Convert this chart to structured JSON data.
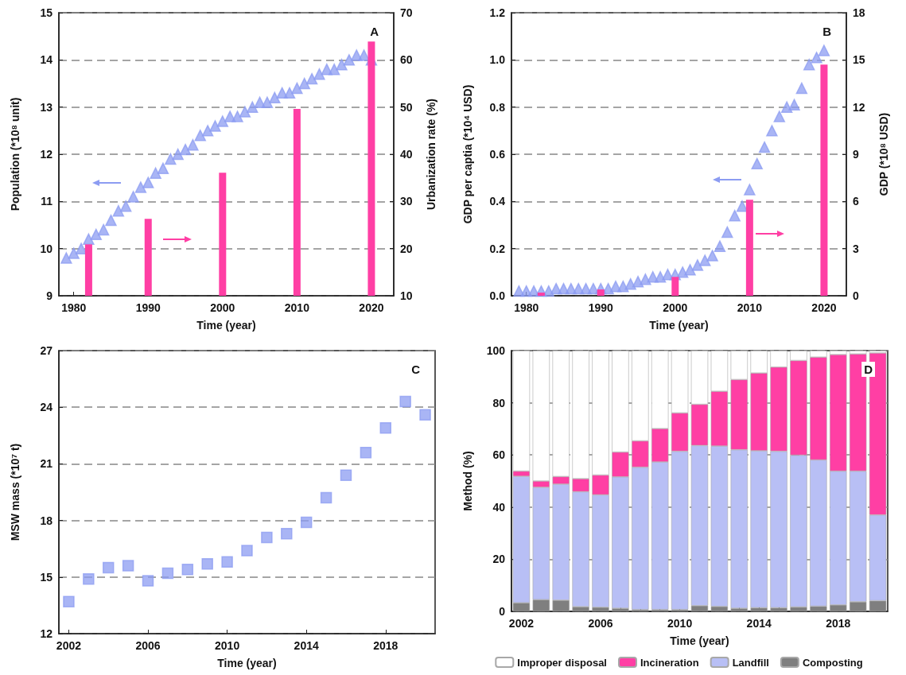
{
  "chart_data": [
    {
      "type": "scatter",
      "annotations": [
        "A"
      ],
      "xlabel": "Time (year)",
      "ylabel": "Population (*10⁸ unit)",
      "y2label": "Urbanization rate (%)",
      "xlim": [
        1978,
        2023
      ],
      "xticks": [
        1980,
        1990,
        2000,
        2010,
        2020
      ],
      "ylim": [
        9,
        15
      ],
      "yticks": [
        9,
        10,
        11,
        12,
        13,
        14,
        15
      ],
      "y2lim": [
        10,
        70
      ],
      "y2ticks": [
        10,
        20,
        30,
        40,
        50,
        60,
        70
      ],
      "grid": "y",
      "marker": "triangle",
      "series": [
        {
          "color": "#8c9cf2",
          "x": [
            1979,
            1980,
            1981,
            1982,
            1983,
            1984,
            1985,
            1986,
            1987,
            1988,
            1989,
            1990,
            1991,
            1992,
            1993,
            1994,
            1995,
            1996,
            1997,
            1998,
            1999,
            2000,
            2001,
            2002,
            2003,
            2004,
            2005,
            2006,
            2007,
            2008,
            2009,
            2010,
            2011,
            2012,
            2013,
            2014,
            2015,
            2016,
            2017,
            2018,
            2019,
            2020
          ],
          "values": [
            9.8,
            9.9,
            10.0,
            10.2,
            10.3,
            10.4,
            10.6,
            10.8,
            10.9,
            11.1,
            11.3,
            11.4,
            11.6,
            11.7,
            11.9,
            12.0,
            12.1,
            12.2,
            12.4,
            12.5,
            12.6,
            12.7,
            12.8,
            12.8,
            12.9,
            13.0,
            13.1,
            13.1,
            13.2,
            13.3,
            13.3,
            13.4,
            13.5,
            13.6,
            13.7,
            13.8,
            13.8,
            13.9,
            14.0,
            14.1,
            14.1,
            14.0
          ]
        },
        {
          "type": "bar",
          "axis": "y2",
          "color": "#ff3fa4",
          "x": [
            1982,
            1990,
            2000,
            2010,
            2020
          ],
          "values": [
            20.9,
            26.3,
            36.1,
            49.6,
            63.9
          ]
        }
      ]
    },
    {
      "type": "scatter",
      "annotations": [
        "B"
      ],
      "xlabel": "Time (year)",
      "ylabel": "GDP per captia (*10⁴ USD)",
      "y2label": "GDP (*10⁸ USD)",
      "xlim": [
        1978,
        2023
      ],
      "xticks": [
        1980,
        1990,
        2000,
        2010,
        2020
      ],
      "ylim": [
        0,
        1.2
      ],
      "yticks": [
        {
          "value": 0,
          "label": "0.0"
        },
        0.2,
        0.4,
        0.6,
        0.8,
        {
          "value": 1,
          "label": "1.0"
        },
        1.2
      ],
      "y2lim": [
        0,
        18
      ],
      "y2ticks": [
        0,
        3,
        6,
        9,
        12,
        15,
        18
      ],
      "grid": "y",
      "marker": "triangle",
      "series": [
        {
          "color": "#8c9cf2",
          "x": [
            1979,
            1980,
            1981,
            1982,
            1983,
            1984,
            1985,
            1986,
            1987,
            1988,
            1989,
            1990,
            1991,
            1992,
            1993,
            1994,
            1995,
            1996,
            1997,
            1998,
            1999,
            2000,
            2001,
            2002,
            2003,
            2004,
            2005,
            2006,
            2007,
            2008,
            2009,
            2010,
            2011,
            2012,
            2013,
            2014,
            2015,
            2016,
            2017,
            2018,
            2019,
            2020
          ],
          "values": [
            0.02,
            0.02,
            0.02,
            0.02,
            0.02,
            0.03,
            0.03,
            0.03,
            0.03,
            0.03,
            0.03,
            0.03,
            0.03,
            0.04,
            0.04,
            0.05,
            0.06,
            0.07,
            0.08,
            0.08,
            0.09,
            0.09,
            0.1,
            0.11,
            0.13,
            0.15,
            0.17,
            0.21,
            0.27,
            0.34,
            0.38,
            0.45,
            0.56,
            0.63,
            0.7,
            0.76,
            0.8,
            0.81,
            0.88,
            0.98,
            1.01,
            1.04
          ]
        },
        {
          "type": "bar",
          "axis": "y2",
          "color": "#ff3fa4",
          "x": [
            1982,
            1990,
            2000,
            2010,
            2020
          ],
          "values": [
            0.2,
            0.4,
            1.2,
            6.1,
            14.7
          ]
        }
      ]
    },
    {
      "type": "scatter",
      "annotations": [
        "C"
      ],
      "xlabel": "Time (year)",
      "ylabel": "MSW mass (*10⁷ t)",
      "xlim": [
        2001.5,
        2020.5
      ],
      "xticks": [
        2002,
        2006,
        2010,
        2014,
        2018
      ],
      "ylim": [
        12,
        27
      ],
      "yticks": [
        12,
        15,
        18,
        21,
        24,
        27
      ],
      "grid": "y",
      "marker": "square",
      "series": [
        {
          "color": "#8c9cf2",
          "x": [
            2002,
            2003,
            2004,
            2005,
            2006,
            2007,
            2008,
            2009,
            2010,
            2011,
            2012,
            2013,
            2014,
            2015,
            2016,
            2017,
            2018,
            2019,
            2020
          ],
          "values": [
            13.7,
            14.9,
            15.5,
            15.6,
            14.8,
            15.2,
            15.4,
            15.7,
            15.8,
            16.4,
            17.1,
            17.3,
            17.9,
            19.2,
            20.4,
            21.6,
            22.9,
            24.3,
            23.6
          ]
        }
      ]
    },
    {
      "type": "bar",
      "stacked": true,
      "annotations": [
        "D"
      ],
      "xlabel": "Time (year)",
      "ylabel": "Method (%)",
      "categories": [
        "2002",
        null,
        null,
        null,
        "2006",
        null,
        null,
        null,
        "2010",
        null,
        null,
        null,
        "2014",
        null,
        null,
        null,
        "2018",
        null,
        null
      ],
      "ylim": [
        0,
        100
      ],
      "yticks": [
        0,
        20,
        40,
        60,
        80,
        100
      ],
      "grid": "y",
      "legend": "bottom",
      "series": [
        {
          "name": "Composting",
          "color": "#7f7f7f",
          "values": [
            3.3,
            4.5,
            4.3,
            1.8,
            1.6,
            1.2,
            0.7,
            0.7,
            0.7,
            2.2,
            1.9,
            1.2,
            1.4,
            1.4,
            1.7,
            2.0,
            2.5,
            3.7,
            4.1
          ]
        },
        {
          "name": "Landfill",
          "color": "#b8bff5",
          "values": [
            48.5,
            43.1,
            44.5,
            44.1,
            43.1,
            50.4,
            54.6,
            56.6,
            60.7,
            61.4,
            61.5,
            60.8,
            60.2,
            60.0,
            58.2,
            56.1,
            51.3,
            50.1,
            32.9
          ]
        },
        {
          "name": "Incineration",
          "color": "#ff3fa4",
          "values": [
            2.0,
            2.4,
            2.9,
            5.0,
            7.6,
            9.5,
            10.1,
            12.8,
            14.7,
            15.8,
            21.0,
            26.9,
            29.8,
            32.3,
            36.3,
            39.4,
            44.7,
            44.9,
            62.1
          ]
        },
        {
          "name": "Improper disposal",
          "color": "#ffffff",
          "values": [
            46.2,
            50.0,
            48.3,
            49.1,
            47.7,
            38.9,
            34.6,
            29.9,
            23.9,
            20.6,
            15.6,
            11.1,
            8.6,
            6.3,
            3.8,
            2.5,
            1.5,
            1.3,
            0.9
          ]
        }
      ]
    }
  ]
}
